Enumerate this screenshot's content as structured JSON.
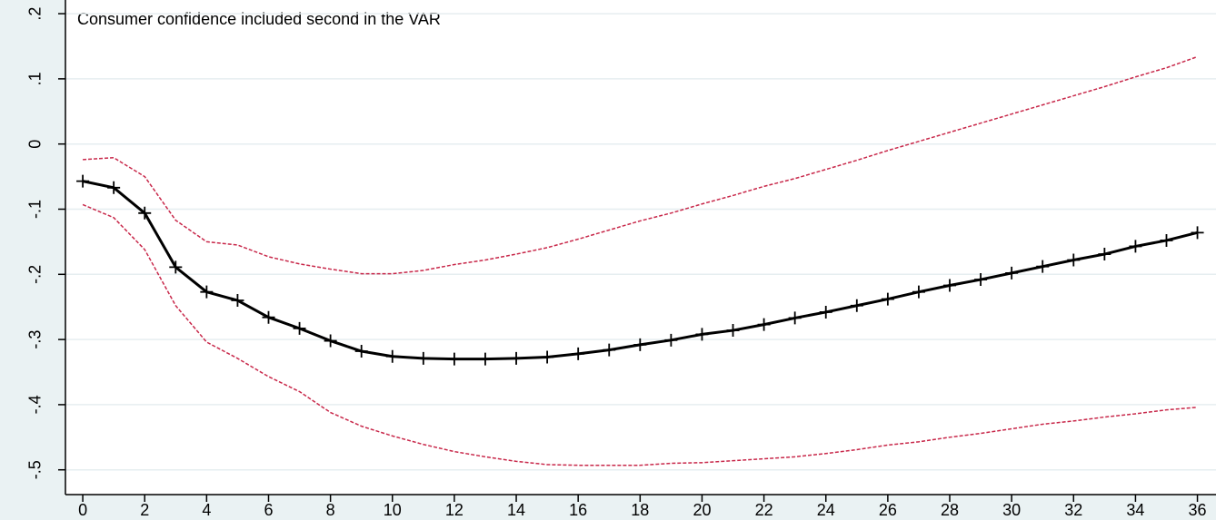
{
  "chart_data": {
    "type": "line",
    "annotation": "Consumer confidence included second in the VAR",
    "x": [
      0,
      1,
      2,
      3,
      4,
      5,
      6,
      7,
      8,
      9,
      10,
      11,
      12,
      13,
      14,
      15,
      16,
      17,
      18,
      19,
      20,
      21,
      22,
      23,
      24,
      25,
      26,
      27,
      28,
      29,
      30,
      31,
      32,
      33,
      34,
      35,
      36
    ],
    "series": [
      {
        "color": "#c8284a",
        "dashed": true,
        "values": [
          -0.024,
          -0.021,
          -0.05,
          -0.117,
          -0.15,
          -0.155,
          -0.173,
          -0.184,
          -0.192,
          -0.199,
          -0.199,
          -0.194,
          -0.185,
          -0.178,
          -0.169,
          -0.159,
          -0.146,
          -0.132,
          -0.118,
          -0.106,
          -0.092,
          -0.079,
          -0.065,
          -0.053,
          -0.039,
          -0.025,
          -0.01,
          0.004,
          0.018,
          0.032,
          0.046,
          0.06,
          0.074,
          0.088,
          0.103,
          0.117,
          0.134
        ]
      },
      {
        "color": "#000000",
        "dashed": false,
        "marker": "+",
        "values": [
          -0.057,
          -0.067,
          -0.106,
          -0.189,
          -0.227,
          -0.24,
          -0.266,
          -0.283,
          -0.302,
          -0.318,
          -0.326,
          -0.329,
          -0.33,
          -0.33,
          -0.329,
          -0.327,
          -0.322,
          -0.316,
          -0.308,
          -0.301,
          -0.292,
          -0.286,
          -0.277,
          -0.267,
          -0.258,
          -0.248,
          -0.238,
          -0.227,
          -0.217,
          -0.208,
          -0.198,
          -0.188,
          -0.178,
          -0.169,
          -0.157,
          -0.148,
          -0.136
        ]
      },
      {
        "color": "#c8284a",
        "dashed": true,
        "values": [
          -0.093,
          -0.113,
          -0.162,
          -0.248,
          -0.304,
          -0.329,
          -0.357,
          -0.38,
          -0.412,
          -0.433,
          -0.448,
          -0.461,
          -0.472,
          -0.48,
          -0.487,
          -0.492,
          -0.493,
          -0.493,
          -0.493,
          -0.49,
          -0.489,
          -0.486,
          -0.483,
          -0.48,
          -0.475,
          -0.469,
          -0.462,
          -0.457,
          -0.45,
          -0.444,
          -0.437,
          -0.43,
          -0.425,
          -0.419,
          -0.414,
          -0.408,
          -0.404
        ]
      }
    ],
    "xlim": [
      -0.56,
      36.6
    ],
    "ylim": [
      -0.538,
      0.221
    ],
    "xticks": [
      0,
      2,
      4,
      6,
      8,
      10,
      12,
      14,
      16,
      18,
      20,
      22,
      24,
      26,
      28,
      30,
      32,
      34,
      36
    ],
    "yticks": [
      {
        "value": -0.5,
        "label": "-.5"
      },
      {
        "value": -0.4,
        "label": "-.4"
      },
      {
        "value": -0.3,
        "label": "-.3"
      },
      {
        "value": -0.2,
        "label": "-.2"
      },
      {
        "value": -0.1,
        "label": "-.1"
      },
      {
        "value": 0,
        "label": "0"
      },
      {
        "value": 0.1,
        "label": ".1"
      },
      {
        "value": 0.2,
        "label": ".2"
      }
    ],
    "grid": true
  }
}
